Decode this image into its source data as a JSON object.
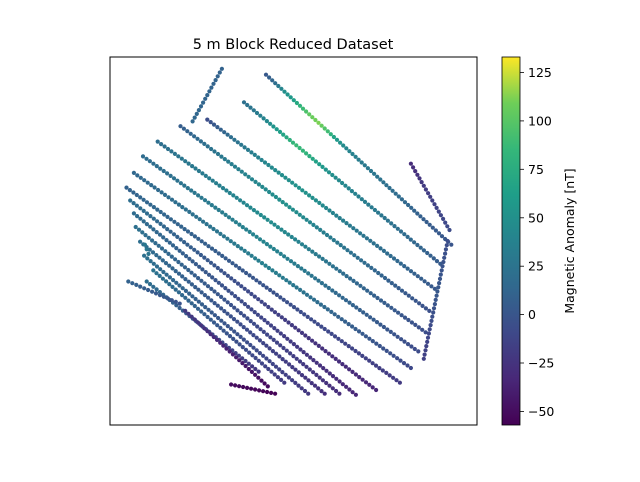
{
  "chart_data": {
    "type": "scatter",
    "title": "5 m Block Reduced Dataset",
    "xlabel": "",
    "ylabel": "",
    "axes_ticks_visible": false,
    "colormap": "viridis",
    "colorbar": {
      "label": "Magnetic Anomaly [nT]",
      "vmin": -57,
      "vmax": 133,
      "ticks": [
        -50,
        -25,
        0,
        25,
        50,
        75,
        100,
        125
      ],
      "tick_labels": [
        "−50",
        "−25",
        "0",
        "25",
        "50",
        "75",
        "100",
        "125"
      ]
    },
    "xlim": [
      0,
      100
    ],
    "ylim": [
      0,
      100
    ],
    "survey_lines": [
      {
        "start": [
          42.5,
          95.2
        ],
        "end": [
          93.0,
          49.0
        ],
        "values": [
          2,
          18,
          48,
          60,
          84,
          105,
          112,
          90,
          58,
          42,
          36,
          30,
          28,
          24,
          20,
          18,
          14,
          10,
          6,
          4,
          2,
          0
        ]
      },
      {
        "start": [
          36.5,
          87.7
        ],
        "end": [
          90.0,
          43.8
        ],
        "values": [
          22,
          28,
          40,
          56,
          70,
          88,
          82,
          64,
          52,
          46,
          40,
          36,
          32,
          28,
          24,
          20,
          16,
          12,
          8,
          4
        ]
      },
      {
        "start": [
          26.5,
          83.0
        ],
        "end": [
          88.5,
          37.0
        ],
        "values": [
          -6,
          8,
          20,
          28,
          36,
          42,
          46,
          50,
          52,
          48,
          42,
          36,
          30,
          26,
          22,
          18,
          14,
          10,
          6,
          2
        ]
      },
      {
        "start": [
          19.2,
          81.2
        ],
        "end": [
          87.0,
          31.0
        ],
        "values": [
          6,
          14,
          22,
          28,
          34,
          38,
          42,
          46,
          50,
          46,
          40,
          34,
          28,
          22,
          18,
          12,
          8,
          4,
          0,
          -4
        ]
      },
      {
        "start": [
          13.0,
          77.0
        ],
        "end": [
          86.0,
          25.2
        ],
        "values": [
          20,
          24,
          28,
          30,
          34,
          38,
          40,
          44,
          46,
          42,
          38,
          32,
          26,
          20,
          14,
          10,
          6,
          2,
          -2,
          -6
        ]
      },
      {
        "start": [
          9.0,
          73.0
        ],
        "end": [
          84.0,
          20.0
        ],
        "values": [
          18,
          20,
          22,
          26,
          28,
          32,
          34,
          36,
          40,
          38,
          34,
          30,
          24,
          18,
          12,
          8,
          4,
          0,
          -4,
          -8
        ]
      },
      {
        "start": [
          6.5,
          68.5
        ],
        "end": [
          82.0,
          15.5
        ],
        "values": [
          14,
          16,
          18,
          20,
          22,
          24,
          26,
          30,
          32,
          36,
          32,
          28,
          22,
          16,
          10,
          6,
          2,
          -2,
          -6,
          -10
        ]
      },
      {
        "start": [
          4.5,
          64.5
        ],
        "end": [
          79.0,
          11.5
        ],
        "values": [
          10,
          12,
          14,
          12,
          10,
          8,
          6,
          4,
          2,
          0,
          -2,
          -4,
          -6,
          -8,
          -10,
          -12,
          -14,
          -16,
          -18,
          -20
        ]
      },
      {
        "start": [
          5.5,
          61.0
        ],
        "end": [
          72.5,
          9.5
        ],
        "values": [
          20,
          18,
          14,
          10,
          6,
          2,
          -2,
          -6,
          -10,
          -14,
          -18,
          -22,
          -26,
          -28,
          -30,
          -32,
          -34
        ]
      },
      {
        "start": [
          6.5,
          57.5
        ],
        "end": [
          67.0,
          8.2
        ],
        "values": [
          18,
          16,
          12,
          8,
          4,
          0,
          -4,
          -8,
          -12,
          -16,
          -20,
          -24,
          -28,
          -32,
          -34
        ]
      },
      {
        "start": [
          7.0,
          53.8
        ],
        "end": [
          62.5,
          8.5
        ],
        "values": [
          22,
          18,
          14,
          10,
          6,
          2,
          -2,
          -6,
          -10,
          -14,
          -18,
          -22,
          -26,
          -30
        ]
      },
      {
        "start": [
          8.2,
          49.8
        ],
        "end": [
          58.5,
          8.5
        ],
        "values": [
          20,
          16,
          12,
          8,
          4,
          0,
          -4,
          -8,
          -12,
          -16,
          -20,
          -24,
          -28
        ]
      },
      {
        "start": [
          9.3,
          46.0
        ],
        "end": [
          54.0,
          8.5
        ],
        "values": [
          22,
          18,
          14,
          10,
          6,
          2,
          -2,
          -6,
          -10,
          -14,
          -18,
          -22
        ]
      },
      {
        "start": [
          11.8,
          42.0
        ],
        "end": [
          47.5,
          11.5
        ],
        "values": [
          24,
          20,
          16,
          12,
          8,
          4,
          0,
          -4,
          -8,
          -12,
          -16,
          -20
        ]
      },
      {
        "start": [
          10.0,
          39.0
        ],
        "end": [
          40.5,
          14.5
        ],
        "values": [
          20,
          16,
          12,
          8,
          4,
          0,
          -4,
          -8,
          -12,
          -16,
          -20,
          -24
        ]
      },
      {
        "start": [
          5.0,
          39.0
        ],
        "end": [
          19.0,
          33.0
        ],
        "values": [
          10,
          8,
          6,
          4,
          2,
          0,
          -2
        ]
      },
      {
        "start": [
          20.5,
          31.0
        ],
        "end": [
          43.0,
          10.5
        ],
        "values": [
          -20,
          -24,
          -28,
          -32,
          -36,
          -40,
          -44,
          -48,
          -52
        ]
      },
      {
        "start": [
          33.0,
          11.0
        ],
        "end": [
          45.0,
          8.5
        ],
        "values": [
          -50,
          -52,
          -54,
          -56
        ]
      },
      {
        "start": [
          9.5,
          49.0
        ],
        "end": [
          10.5,
          46.5
        ],
        "values": [
          28,
          26
        ]
      },
      {
        "start": [
          30.5,
          96.8
        ],
        "end": [
          22.5,
          82.5
        ],
        "values": [
          10,
          12,
          14
        ]
      },
      {
        "start": [
          82.0,
          71.0
        ],
        "end": [
          92.5,
          53.0
        ],
        "values": [
          -30,
          -28,
          -24,
          -20,
          -18,
          -16,
          -14,
          -12,
          -10,
          -8
        ]
      },
      {
        "start": [
          92.0,
          50.0
        ],
        "end": [
          85.5,
          18.0
        ],
        "values": [
          -6,
          -4,
          -2,
          0,
          2,
          -2,
          -6,
          -10,
          -14,
          -16
        ]
      }
    ]
  }
}
